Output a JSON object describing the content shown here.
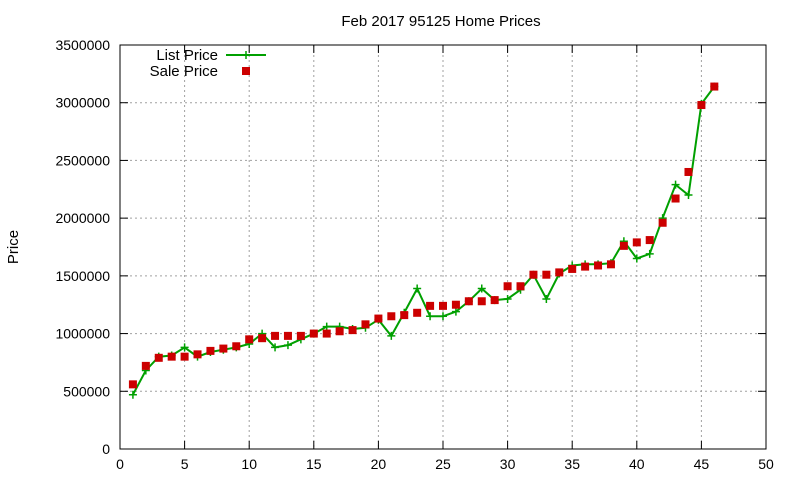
{
  "chart_data": {
    "type": "line",
    "title": "Feb 2017 95125 Home Prices",
    "xlabel": "",
    "ylabel": "Price",
    "xlim": [
      0,
      50
    ],
    "ylim": [
      0,
      3500000
    ],
    "x_ticks": [
      0,
      5,
      10,
      15,
      20,
      25,
      30,
      35,
      40,
      45,
      50
    ],
    "y_ticks": [
      0,
      500000,
      1000000,
      1500000,
      2000000,
      2500000,
      3000000,
      3500000
    ],
    "grid": true,
    "legend_position": "top-left",
    "series": [
      {
        "name": "List Price",
        "style": "line-with-plus-markers",
        "color": "#00a000",
        "x": [
          1,
          2,
          3,
          4,
          5,
          6,
          7,
          8,
          9,
          10,
          11,
          12,
          13,
          14,
          15,
          16,
          17,
          18,
          19,
          20,
          21,
          22,
          23,
          24,
          25,
          26,
          27,
          28,
          29,
          30,
          31,
          32,
          33,
          34,
          35,
          36,
          37,
          38,
          39,
          40,
          41,
          42,
          43,
          44,
          45,
          46
        ],
        "values": [
          470000,
          680000,
          800000,
          810000,
          880000,
          800000,
          840000,
          860000,
          880000,
          910000,
          1000000,
          880000,
          900000,
          950000,
          1000000,
          1060000,
          1060000,
          1040000,
          1050000,
          1120000,
          980000,
          1180000,
          1390000,
          1150000,
          1150000,
          1190000,
          1280000,
          1390000,
          1290000,
          1300000,
          1380000,
          1510000,
          1300000,
          1520000,
          1590000,
          1600000,
          1600000,
          1610000,
          1800000,
          1650000,
          1690000,
          2000000,
          2290000,
          2200000,
          2990000,
          3140000
        ]
      },
      {
        "name": "Sale Price",
        "style": "square-markers",
        "color": "#cc0000",
        "x": [
          1,
          2,
          3,
          4,
          5,
          6,
          7,
          8,
          9,
          10,
          11,
          12,
          13,
          14,
          15,
          16,
          17,
          18,
          19,
          20,
          21,
          22,
          23,
          24,
          25,
          26,
          27,
          28,
          29,
          30,
          31,
          32,
          33,
          34,
          35,
          36,
          37,
          38,
          39,
          40,
          41,
          42,
          43,
          44,
          45,
          46
        ],
        "values": [
          560000,
          720000,
          790000,
          800000,
          800000,
          820000,
          850000,
          870000,
          890000,
          950000,
          960000,
          980000,
          980000,
          980000,
          1000000,
          1000000,
          1020000,
          1030000,
          1080000,
          1130000,
          1150000,
          1160000,
          1180000,
          1240000,
          1240000,
          1250000,
          1280000,
          1280000,
          1290000,
          1410000,
          1410000,
          1510000,
          1510000,
          1530000,
          1560000,
          1580000,
          1590000,
          1600000,
          1760000,
          1790000,
          1810000,
          1960000,
          2170000,
          2400000,
          2980000,
          3140000
        ]
      }
    ]
  }
}
